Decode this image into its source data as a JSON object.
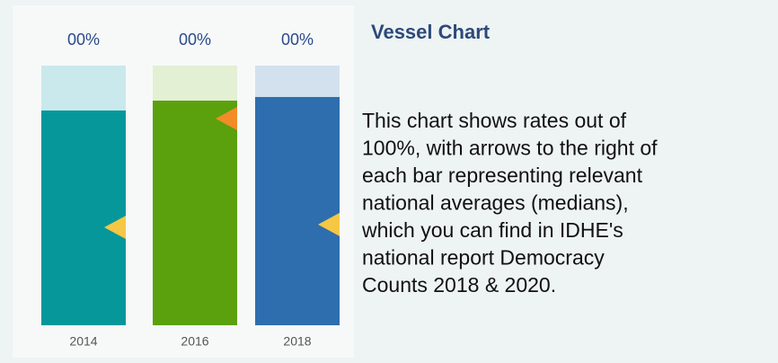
{
  "chart_data": {
    "type": "vessel",
    "title": "Vessel Chart",
    "description_lines": [
      "This chart shows rates out of",
      "100%, with arrows to the right of",
      "each bar representing relevant",
      "national averages (medians),",
      "which you can find in IDHE's",
      "national report Democracy",
      "Counts 2018 & 2020."
    ],
    "categories": [
      "2014",
      "2016",
      "2018"
    ],
    "top_labels": [
      "00%",
      "00%",
      "00%"
    ],
    "values": [
      82.7,
      86.5,
      87.9
    ],
    "medians": [
      37.7,
      79.6,
      38.8
    ],
    "colors": [
      "#05979a",
      "#5aa10d",
      "#2e6eae"
    ],
    "empty_colors": [
      "#c9e9ec",
      "#e3f0d3",
      "#d3e1ef"
    ],
    "arrow_colors": [
      "#f6c744",
      "#f28c28",
      "#f6c744"
    ],
    "ylim": [
      0,
      100
    ]
  }
}
